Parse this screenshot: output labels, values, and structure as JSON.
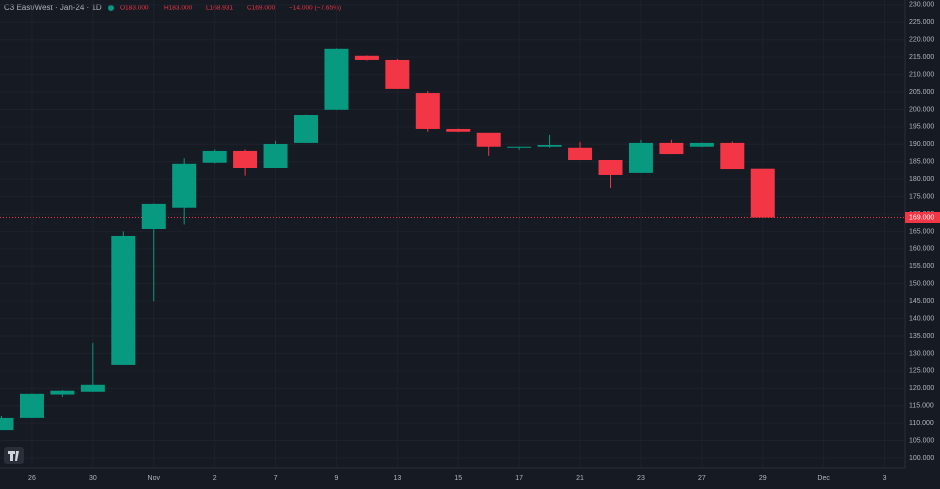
{
  "chart_data": {
    "type": "candlestick",
    "header": {
      "symbol": "C3 East/West · Jan-24 · 1D",
      "open": "O183.000",
      "high": "H183.000",
      "low": "L168.931",
      "close": "C169.000",
      "change": "−14.000 (−7.65%)"
    },
    "categories": [
      null,
      "26",
      null,
      "30",
      null,
      "Nov",
      null,
      "2",
      null,
      "7",
      null,
      "9",
      null,
      "13",
      null,
      "15",
      null,
      "17",
      null,
      "21",
      null,
      "23",
      null,
      "27",
      null,
      "29",
      null,
      "Dec",
      null,
      "3"
    ],
    "series": {
      "open": [
        108,
        111.5,
        118.2,
        119,
        126.7,
        165.7,
        171.8,
        184.7,
        188.1,
        183.2,
        190.4,
        199.9,
        215.4,
        214.2,
        204.7,
        194.4,
        193.3,
        189,
        189.3,
        189,
        185.5,
        181.8,
        190.4,
        189.3,
        190.4,
        183,
        null,
        null,
        null,
        null
      ],
      "high": [
        112,
        118.5,
        119.5,
        133,
        165,
        173,
        186,
        188.5,
        188.5,
        191,
        198.5,
        217.5,
        215.5,
        214.5,
        205.3,
        194.5,
        193.3,
        189.3,
        192.7,
        190.7,
        185.5,
        191.3,
        191.3,
        190.5,
        190.8,
        183,
        null,
        null,
        null,
        null
      ],
      "low": [
        108,
        111.5,
        117.5,
        119,
        126.7,
        145,
        167,
        184.5,
        181,
        183.2,
        190.4,
        199.9,
        214,
        205.9,
        193.6,
        193.5,
        186.7,
        188.4,
        189,
        185.5,
        177.5,
        181.8,
        187.2,
        189.2,
        182.9,
        168.931,
        null,
        null,
        null,
        null
      ],
      "close": [
        111.5,
        118.4,
        119.3,
        121,
        163.7,
        172.9,
        184.4,
        188.1,
        183.2,
        190.1,
        198.4,
        217.4,
        214.2,
        205.9,
        194.4,
        193.6,
        189.3,
        189.3,
        189.8,
        185.5,
        181.2,
        190.4,
        187.2,
        190.4,
        182.9,
        169,
        null,
        null,
        null,
        null
      ]
    },
    "up_color": "#089981",
    "down_color": "#f23645",
    "last_price": {
      "value": 169,
      "label": "169.000"
    },
    "ylim": [
      97.7,
      231.4
    ],
    "yticks": [
      {
        "value": 100,
        "label": "100.000"
      },
      {
        "value": 105,
        "label": "105.000"
      },
      {
        "value": 110,
        "label": "110.000"
      },
      {
        "value": 115,
        "label": "115.000"
      },
      {
        "value": 120,
        "label": "120.000"
      },
      {
        "value": 125,
        "label": "125.000"
      },
      {
        "value": 130,
        "label": "130.000"
      },
      {
        "value": 135,
        "label": "135.000"
      },
      {
        "value": 140,
        "label": "140.000"
      },
      {
        "value": 145,
        "label": "145.000"
      },
      {
        "value": 150,
        "label": "150.000"
      },
      {
        "value": 155,
        "label": "155.000"
      },
      {
        "value": 160,
        "label": "160.000"
      },
      {
        "value": 165,
        "label": "165.000"
      },
      {
        "value": 170,
        "label": "170.000"
      },
      {
        "value": 175,
        "label": "175.000"
      },
      {
        "value": 180,
        "label": "180.000"
      },
      {
        "value": 185,
        "label": "185.000"
      },
      {
        "value": 190,
        "label": "190.000"
      },
      {
        "value": 195,
        "label": "195.000"
      },
      {
        "value": 200,
        "label": "200.000"
      },
      {
        "value": 205,
        "label": "205.000"
      },
      {
        "value": 210,
        "label": "210.000"
      },
      {
        "value": 215,
        "label": "215.000"
      },
      {
        "value": 220,
        "label": "220.000"
      },
      {
        "value": 225,
        "label": "225.000"
      },
      {
        "value": 230,
        "label": "230.000"
      }
    ],
    "grid": true
  }
}
